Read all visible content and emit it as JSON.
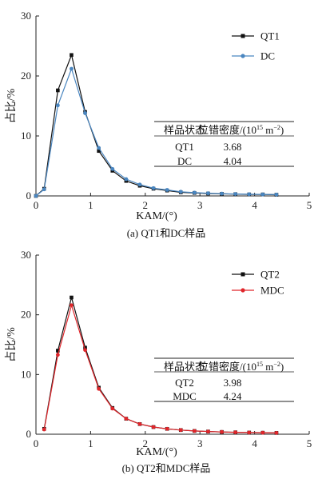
{
  "chart_data": [
    {
      "type": "line",
      "panel": "a",
      "caption": "(a) QT1和DC样品",
      "xlabel": "KAM/(°)",
      "ylabel": "占比/%",
      "xlim": [
        0,
        5
      ],
      "ylim": [
        0,
        30
      ],
      "x_ticks": [
        "0",
        "1",
        "2",
        "3",
        "4",
        "5"
      ],
      "y_ticks": [
        "0",
        "10",
        "20",
        "30"
      ],
      "x": [
        0.0,
        0.15,
        0.4,
        0.65,
        0.9,
        1.15,
        1.4,
        1.65,
        1.9,
        2.15,
        2.4,
        2.65,
        2.9,
        3.15,
        3.4,
        3.65,
        3.9,
        4.15,
        4.4
      ],
      "series": [
        {
          "name": "QT1",
          "color": "#111111",
          "marker": "square",
          "values": [
            0.0,
            1.2,
            17.6,
            23.5,
            14.0,
            7.5,
            4.2,
            2.5,
            1.7,
            1.2,
            0.9,
            0.6,
            0.5,
            0.4,
            0.35,
            0.3,
            0.25,
            0.25,
            0.2
          ]
        },
        {
          "name": "DC",
          "color": "#4a86c0",
          "marker": "circle",
          "values": [
            0.0,
            1.1,
            15.1,
            21.2,
            13.8,
            8.0,
            4.5,
            2.8,
            1.9,
            1.3,
            1.0,
            0.7,
            0.55,
            0.45,
            0.38,
            0.32,
            0.28,
            0.25,
            0.22
          ]
        }
      ],
      "legend_position": "top-right",
      "table": {
        "headers": [
          "样品状态",
          "位错密度/(10",
          "15",
          " m",
          "−2",
          ")"
        ],
        "rows": [
          [
            "QT1",
            "3.68"
          ],
          [
            "DC",
            "4.04"
          ]
        ]
      }
    },
    {
      "type": "line",
      "panel": "b",
      "caption": "(b) QT2和MDC样品",
      "xlabel": "KAM/(°)",
      "ylabel": "占比/%",
      "xlim": [
        0,
        5
      ],
      "ylim": [
        0,
        30
      ],
      "x_ticks": [
        "0",
        "1",
        "2",
        "3",
        "4",
        "5"
      ],
      "y_ticks": [
        "0",
        "10",
        "20",
        "30"
      ],
      "x": [
        0.15,
        0.4,
        0.65,
        0.9,
        1.15,
        1.4,
        1.65,
        1.9,
        2.15,
        2.4,
        2.65,
        2.9,
        3.15,
        3.4,
        3.65,
        3.9,
        4.15,
        4.4
      ],
      "series": [
        {
          "name": "QT2",
          "color": "#111111",
          "marker": "square",
          "values": [
            0.9,
            14.0,
            22.9,
            14.5,
            7.8,
            4.4,
            2.6,
            1.7,
            1.2,
            0.9,
            0.7,
            0.55,
            0.45,
            0.38,
            0.32,
            0.28,
            0.25,
            0.22
          ]
        },
        {
          "name": "MDC",
          "color": "#e0262b",
          "marker": "circle",
          "values": [
            0.8,
            13.3,
            21.6,
            14.1,
            7.6,
            4.3,
            2.6,
            1.7,
            1.2,
            0.9,
            0.7,
            0.55,
            0.45,
            0.38,
            0.32,
            0.28,
            0.25,
            0.22
          ]
        }
      ],
      "legend_position": "top-right",
      "table": {
        "headers": [
          "样品状态",
          "位错密度/(10",
          "15",
          " m",
          "−2",
          ")"
        ],
        "rows": [
          [
            "QT2",
            "3.98"
          ],
          [
            "MDC",
            "4.24"
          ]
        ]
      }
    }
  ]
}
